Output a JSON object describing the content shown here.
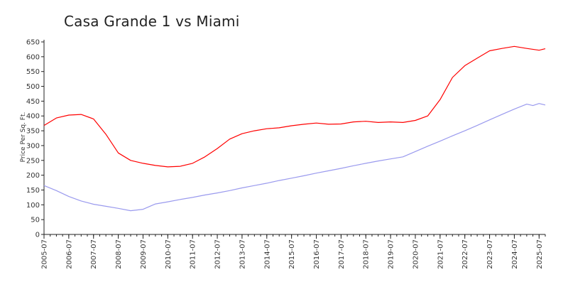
{
  "chart_data": {
    "type": "line",
    "title": "Casa Grande 1 vs Miami",
    "xlabel": "",
    "ylabel": "Price Per Sq. Ft.",
    "ylim": [
      0,
      650
    ],
    "yticks": [
      0,
      50,
      100,
      150,
      200,
      250,
      300,
      350,
      400,
      450,
      500,
      550,
      600,
      650
    ],
    "xlim": [
      "2005-07",
      "2025-10"
    ],
    "xticks": [
      "2005-07",
      "2006-07",
      "2007-07",
      "2008-07",
      "2009-07",
      "2010-07",
      "2011-07",
      "2012-07",
      "2013-07",
      "2014-07",
      "2015-07",
      "2016-07",
      "2017-07",
      "2018-07",
      "2019-07",
      "2020-07",
      "2021-07",
      "2022-07",
      "2023-07",
      "2024-07",
      "2025-07"
    ],
    "grid": false,
    "legend": "none",
    "series": [
      {
        "color": "#ff0000",
        "points": [
          [
            "2005-07",
            368
          ],
          [
            "2006-01",
            393
          ],
          [
            "2006-07",
            403
          ],
          [
            "2007-01",
            405
          ],
          [
            "2007-07",
            390
          ],
          [
            "2008-01",
            338
          ],
          [
            "2008-07",
            275
          ],
          [
            "2009-01",
            250
          ],
          [
            "2009-07",
            240
          ],
          [
            "2010-01",
            233
          ],
          [
            "2010-07",
            228
          ],
          [
            "2011-01",
            230
          ],
          [
            "2011-07",
            240
          ],
          [
            "2012-01",
            262
          ],
          [
            "2012-07",
            290
          ],
          [
            "2013-01",
            322
          ],
          [
            "2013-07",
            340
          ],
          [
            "2014-01",
            350
          ],
          [
            "2014-07",
            357
          ],
          [
            "2015-01",
            360
          ],
          [
            "2015-07",
            367
          ],
          [
            "2016-01",
            372
          ],
          [
            "2016-07",
            376
          ],
          [
            "2017-01",
            372
          ],
          [
            "2017-07",
            373
          ],
          [
            "2018-01",
            380
          ],
          [
            "2018-07",
            382
          ],
          [
            "2019-01",
            378
          ],
          [
            "2019-07",
            380
          ],
          [
            "2020-01",
            378
          ],
          [
            "2020-07",
            385
          ],
          [
            "2021-01",
            400
          ],
          [
            "2021-07",
            455
          ],
          [
            "2022-01",
            530
          ],
          [
            "2022-07",
            570
          ],
          [
            "2023-01",
            595
          ],
          [
            "2023-07",
            620
          ],
          [
            "2024-01",
            628
          ],
          [
            "2024-07",
            635
          ],
          [
            "2025-01",
            628
          ],
          [
            "2025-07",
            622
          ],
          [
            "2025-10",
            627
          ]
        ]
      },
      {
        "color": "#9a9aee",
        "points": [
          [
            "2005-07",
            165
          ],
          [
            "2006-01",
            148
          ],
          [
            "2006-07",
            128
          ],
          [
            "2007-01",
            113
          ],
          [
            "2007-07",
            102
          ],
          [
            "2008-01",
            95
          ],
          [
            "2008-07",
            88
          ],
          [
            "2009-01",
            80
          ],
          [
            "2009-07",
            85
          ],
          [
            "2010-01",
            103
          ],
          [
            "2010-07",
            110
          ],
          [
            "2011-01",
            118
          ],
          [
            "2011-07",
            125
          ],
          [
            "2012-01",
            133
          ],
          [
            "2012-07",
            140
          ],
          [
            "2013-01",
            148
          ],
          [
            "2013-07",
            157
          ],
          [
            "2014-01",
            165
          ],
          [
            "2014-07",
            173
          ],
          [
            "2015-01",
            182
          ],
          [
            "2015-07",
            190
          ],
          [
            "2016-01",
            198
          ],
          [
            "2016-07",
            207
          ],
          [
            "2017-01",
            215
          ],
          [
            "2017-07",
            223
          ],
          [
            "2018-01",
            232
          ],
          [
            "2018-07",
            240
          ],
          [
            "2019-01",
            248
          ],
          [
            "2019-07",
            255
          ],
          [
            "2020-01",
            262
          ],
          [
            "2020-07",
            280
          ],
          [
            "2021-01",
            298
          ],
          [
            "2021-07",
            315
          ],
          [
            "2022-01",
            333
          ],
          [
            "2022-07",
            350
          ],
          [
            "2023-01",
            368
          ],
          [
            "2023-07",
            387
          ],
          [
            "2024-01",
            405
          ],
          [
            "2024-07",
            423
          ],
          [
            "2025-01",
            440
          ],
          [
            "2025-04",
            435
          ],
          [
            "2025-07",
            442
          ],
          [
            "2025-10",
            437
          ]
        ]
      }
    ]
  }
}
